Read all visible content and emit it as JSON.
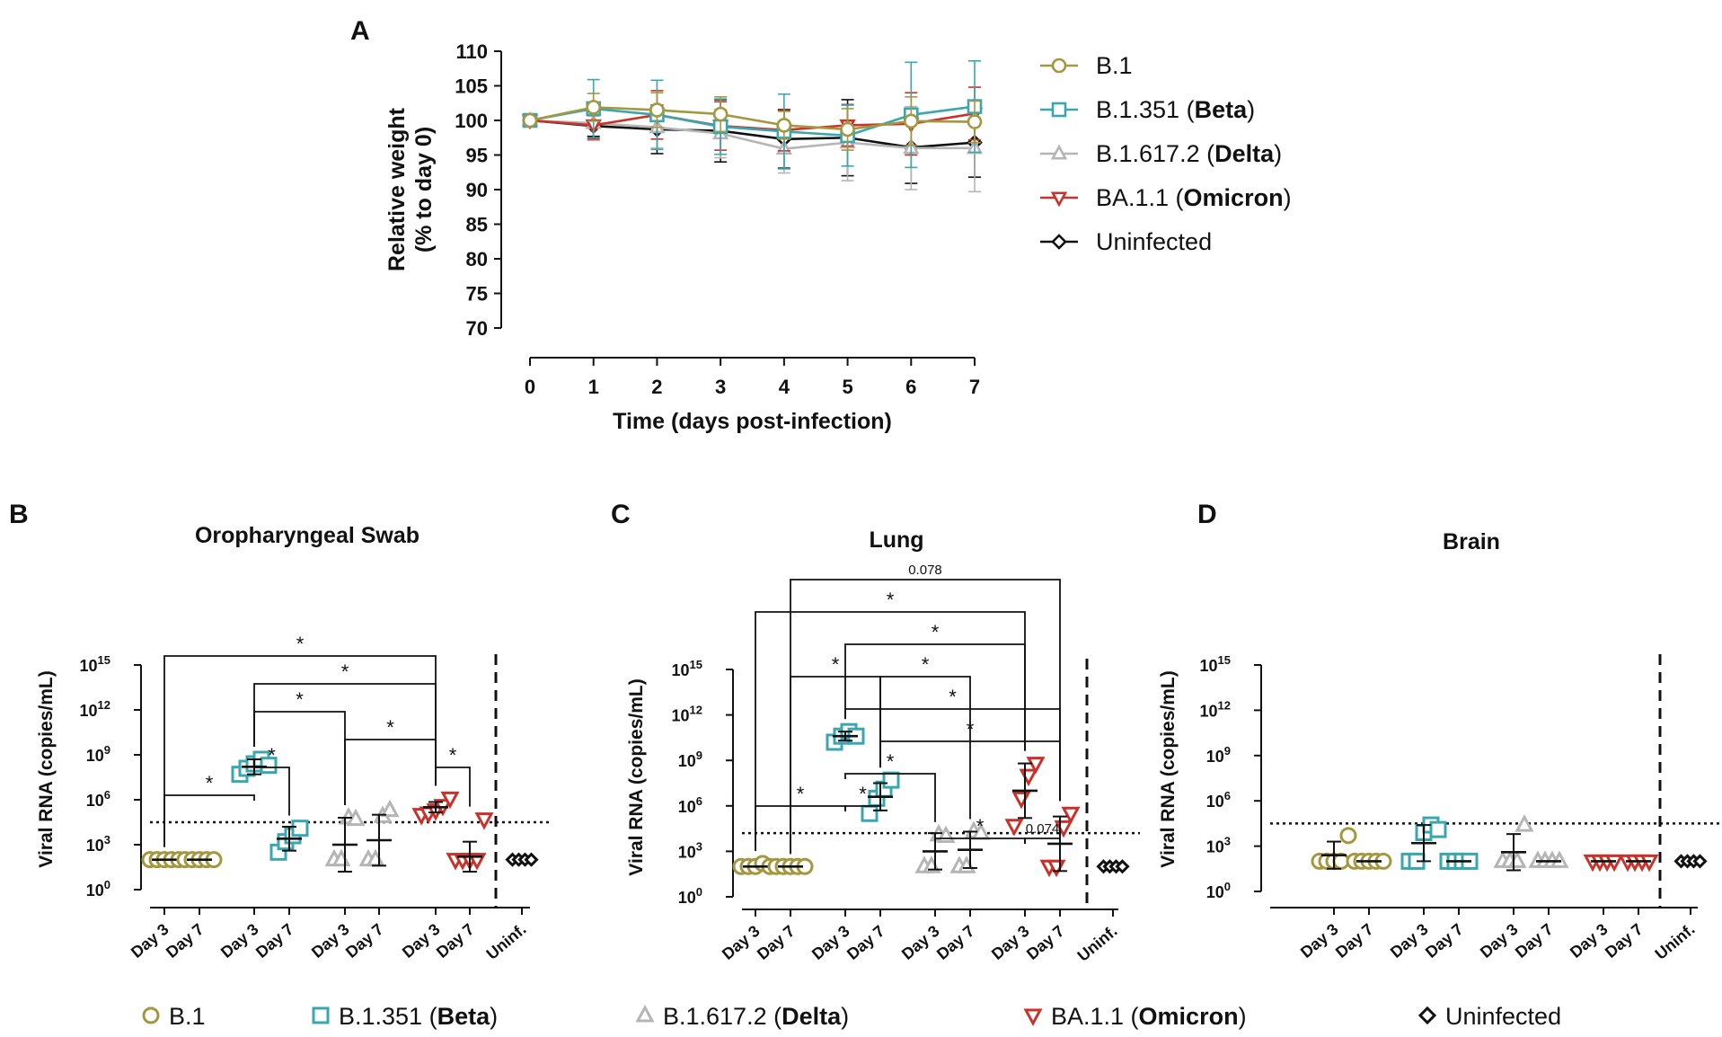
{
  "colors": {
    "b1": "#a39840",
    "beta": "#3aa6b0",
    "delta": "#b5b5b5",
    "omicron": "#c9322a",
    "uninf": "#111111"
  },
  "panel_letters": [
    "A",
    "B",
    "C",
    "D"
  ],
  "legend": [
    {
      "key": "b1",
      "prefix": "B.1",
      "bold": "",
      "suffix": "",
      "marker": "circle"
    },
    {
      "key": "beta",
      "prefix": "B.1.351 (",
      "bold": "Beta",
      "suffix": ")",
      "marker": "square"
    },
    {
      "key": "delta",
      "prefix": "B.1.617.2 (",
      "bold": "Delta",
      "suffix": ")",
      "marker": "triangle-up"
    },
    {
      "key": "omicron",
      "prefix": "BA.1.1 (",
      "bold": "Omicron",
      "suffix": ")",
      "marker": "triangle-down"
    },
    {
      "key": "uninf",
      "prefix": "Uninfected",
      "bold": "",
      "suffix": "",
      "marker": "diamond"
    }
  ],
  "chart_data": [
    {
      "id": "A",
      "type": "line",
      "title": "",
      "xlabel": "Time (days post-infection)",
      "ylabel": [
        "Relative weight",
        "(% to day 0)"
      ],
      "xlim": [
        0,
        7
      ],
      "ylim": [
        70,
        110
      ],
      "xticks": [
        "0",
        "1",
        "2",
        "3",
        "4",
        "5",
        "6",
        "7"
      ],
      "yticks": [
        "70",
        "75",
        "80",
        "85",
        "90",
        "95",
        "100",
        "105",
        "110"
      ],
      "x": [
        0,
        1,
        2,
        3,
        4,
        5,
        6,
        7
      ],
      "series": [
        {
          "key": "uninf",
          "name": "Uninfected",
          "values": [
            100,
            99.2,
            98.7,
            98.5,
            97.3,
            97.5,
            96.1,
            96.8
          ],
          "err": [
            0,
            1.5,
            3.5,
            4.5,
            4.2,
            5.5,
            5.2,
            5.0
          ]
        },
        {
          "key": "delta",
          "name": "B.1.617.2 (Delta)",
          "values": [
            100,
            99.6,
            99.0,
            98.1,
            95.9,
            96.8,
            96.0,
            96.0
          ],
          "err": [
            0,
            2.5,
            3.0,
            3.5,
            3.5,
            5.5,
            6.0,
            6.3
          ]
        },
        {
          "key": "omicron",
          "name": "BA.1.1 (Omicron)",
          "values": [
            100,
            99.3,
            100.8,
            99.2,
            98.6,
            99.3,
            99.5,
            101.0
          ],
          "err": [
            0,
            2.0,
            3.5,
            3.5,
            3.0,
            3.0,
            4.5,
            3.8
          ]
        },
        {
          "key": "beta",
          "name": "B.1.351 (Beta)",
          "values": [
            100,
            101.7,
            100.8,
            99.1,
            98.4,
            97.8,
            100.8,
            102.0
          ],
          "err": [
            0,
            4.2,
            5.0,
            4.0,
            5.4,
            4.4,
            7.6,
            6.6
          ]
        },
        {
          "key": "b1",
          "name": "B.1",
          "values": [
            100,
            101.9,
            101.5,
            100.9,
            99.3,
            98.7,
            99.9,
            99.8
          ],
          "err": [
            0,
            2.0,
            2.5,
            2.5,
            2.0,
            3.0,
            3.5,
            3.0
          ]
        }
      ]
    },
    {
      "id": "B",
      "type": "scatter",
      "title": "Oropharyngeal Swab",
      "ylabel": "Viral RNA (copies/mL)",
      "ylim_log10": [
        0,
        15
      ],
      "yticks": [
        {
          "base": "10",
          "exp": "0"
        },
        {
          "base": "10",
          "exp": "3"
        },
        {
          "base": "10",
          "exp": "6"
        },
        {
          "base": "10",
          "exp": "9"
        },
        {
          "base": "10",
          "exp": "12"
        },
        {
          "base": "10",
          "exp": "15"
        }
      ],
      "groups": [
        {
          "label": "Day 3",
          "key": "b1",
          "log_values": [
            2.0,
            2.0,
            2.0,
            2.0,
            2.0
          ],
          "mean": 2.0,
          "sd": 0
        },
        {
          "label": "Day 7",
          "key": "b1",
          "log_values": [
            2.0,
            2.0,
            2.0,
            2.0,
            2.0
          ],
          "mean": 2.0,
          "sd": 0
        },
        {
          "label": "Day 3",
          "key": "beta",
          "log_values": [
            7.7,
            8.1,
            8.4,
            8.7,
            8.3
          ],
          "mean": 8.2,
          "sd": 0.5
        },
        {
          "label": "Day 7",
          "key": "beta",
          "log_values": [
            2.5,
            3.2,
            3.6,
            4.1
          ],
          "mean": 3.4,
          "sd": 0.8
        },
        {
          "label": "Day 3",
          "key": "delta",
          "log_values": [
            2.0,
            2.0,
            4.8,
            4.7
          ],
          "mean": 3.0,
          "sd": 1.8
        },
        {
          "label": "Day 7",
          "key": "delta",
          "log_values": [
            2.0,
            2.0,
            4.9,
            5.3
          ],
          "mean": 3.3,
          "sd": 1.7
        },
        {
          "label": "Day 3",
          "key": "omicron",
          "log_values": [
            5.0,
            5.1,
            5.3,
            5.6,
            6.1
          ],
          "mean": 5.5,
          "sd": 0.35
        },
        {
          "label": "Day 7",
          "key": "omicron",
          "log_values": [
            2.0,
            2.0,
            2.0,
            2.0,
            4.7
          ],
          "mean": 2.2,
          "sd": 1.0
        },
        {
          "label": "Uninf.",
          "key": "uninf",
          "log_values": [
            2.0,
            2.0,
            2.0,
            2.0
          ],
          "mean": null,
          "sd": null
        }
      ],
      "lod_log10": 4.5,
      "brackets": [
        {
          "from": 0,
          "to": 2,
          "label": "*",
          "level": 5
        },
        {
          "from": 2,
          "to": 3,
          "label": "*",
          "level": 4
        },
        {
          "from": 2,
          "to": 4,
          "label": "*",
          "level": 2
        },
        {
          "from": 4,
          "to": 6,
          "label": "*",
          "level": 3
        },
        {
          "from": 6,
          "to": 7,
          "label": "*",
          "level": 4
        },
        {
          "from": 2,
          "to": 6,
          "label": "*",
          "level": 1
        },
        {
          "from": 0,
          "to": 6,
          "label": "*",
          "level": 0
        }
      ]
    },
    {
      "id": "C",
      "type": "scatter",
      "title": "Lung",
      "ylabel": "Viral RNA (copies/mL)",
      "ylim_log10": [
        0,
        15
      ],
      "yticks": [
        {
          "base": "10",
          "exp": "0"
        },
        {
          "base": "10",
          "exp": "3"
        },
        {
          "base": "10",
          "exp": "6"
        },
        {
          "base": "10",
          "exp": "9"
        },
        {
          "base": "10",
          "exp": "12"
        },
        {
          "base": "10",
          "exp": "15"
        }
      ],
      "groups": [
        {
          "label": "Day 3",
          "key": "b1",
          "log_values": [
            2.0,
            2.0,
            2.0,
            2.2,
            2.0
          ],
          "mean": 2.0,
          "sd": 0
        },
        {
          "label": "Day 7",
          "key": "b1",
          "log_values": [
            2.0,
            2.0,
            2.0,
            2.0,
            2.0
          ],
          "mean": 2.0,
          "sd": 0
        },
        {
          "label": "Day 3",
          "key": "beta",
          "log_values": [
            10.2,
            10.6,
            10.9,
            10.6
          ],
          "mean": 10.6,
          "sd": 0.3
        },
        {
          "label": "Day 7",
          "key": "beta",
          "log_values": [
            5.5,
            6.5,
            7.1,
            7.7
          ],
          "mean": 6.6,
          "sd": 0.9
        },
        {
          "label": "Day 3",
          "key": "delta",
          "log_values": [
            2.0,
            2.0,
            4.1,
            4.0
          ],
          "mean": 3.0,
          "sd": 1.2
        },
        {
          "label": "Day 7",
          "key": "delta",
          "log_values": [
            2.0,
            2.0,
            4.3,
            4.2
          ],
          "mean": 3.1,
          "sd": 1.2
        },
        {
          "label": "Day 3",
          "key": "omicron",
          "log_values": [
            4.7,
            6.5,
            8.0,
            8.8
          ],
          "mean": 7.0,
          "sd": 1.8
        },
        {
          "label": "Day 7",
          "key": "omicron",
          "log_values": [
            2.0,
            2.0,
            4.6,
            5.5
          ],
          "mean": 3.5,
          "sd": 1.8
        },
        {
          "label": "Uninf.",
          "key": "uninf",
          "log_values": [
            2.0,
            2.0,
            2.0,
            2.0
          ],
          "mean": null,
          "sd": null
        }
      ],
      "lod_log10": 4.2,
      "brackets": [
        {
          "from": 0,
          "to": 2,
          "label": "*",
          "level": 3
        },
        {
          "from": 2,
          "to": 3,
          "label": "*",
          "level": 3
        },
        {
          "from": 2,
          "to": 4,
          "label": "*",
          "level": 2
        },
        {
          "from": 4,
          "to": 6,
          "label": "*",
          "level": 4
        },
        {
          "from": 6,
          "to": 7,
          "label": "0.074",
          "level": 4
        },
        {
          "from": 3,
          "to": 7,
          "label": "*",
          "level": 1
        },
        {
          "from": 2,
          "to": 7,
          "label": "*",
          "level": 0
        },
        {
          "from": 3,
          "to": 5,
          "label": "*",
          "level": -1
        },
        {
          "from": 1,
          "to": 3,
          "label": "*",
          "level": -1
        },
        {
          "from": 2,
          "to": 6,
          "label": "*",
          "level": -2
        },
        {
          "from": 0,
          "to": 6,
          "label": "*",
          "level": -3
        },
        {
          "from": 1,
          "to": 7,
          "label": "0.078",
          "level": -4
        }
      ]
    },
    {
      "id": "D",
      "type": "scatter",
      "title": "Brain",
      "ylabel": "Viral RNA (copies/mL)",
      "ylim_log10": [
        0,
        15
      ],
      "yticks": [
        {
          "base": "10",
          "exp": "0"
        },
        {
          "base": "10",
          "exp": "3"
        },
        {
          "base": "10",
          "exp": "6"
        },
        {
          "base": "10",
          "exp": "9"
        },
        {
          "base": "10",
          "exp": "12"
        },
        {
          "base": "10",
          "exp": "15"
        }
      ],
      "groups": [
        {
          "label": "Day 3",
          "key": "b1",
          "log_values": [
            2.0,
            2.0,
            2.0,
            2.0,
            3.7
          ],
          "mean": 2.4,
          "sd": 0.9
        },
        {
          "label": "Day 7",
          "key": "b1",
          "log_values": [
            2.0,
            2.0,
            2.0,
            2.0,
            2.0
          ],
          "mean": 2.0,
          "sd": 0
        },
        {
          "label": "Day 3",
          "key": "beta",
          "log_values": [
            2.0,
            2.0,
            3.9,
            4.4,
            4.1
          ],
          "mean": 3.2,
          "sd": 1.2
        },
        {
          "label": "Day 7",
          "key": "beta",
          "log_values": [
            2.0,
            2.0,
            2.0,
            2.0
          ],
          "mean": 2.0,
          "sd": 0
        },
        {
          "label": "Day 3",
          "key": "delta",
          "log_values": [
            2.0,
            2.0,
            2.0,
            4.4
          ],
          "mean": 2.6,
          "sd": 1.2
        },
        {
          "label": "Day 7",
          "key": "delta",
          "log_values": [
            2.0,
            2.0,
            2.0,
            2.0
          ],
          "mean": 2.0,
          "sd": 0
        },
        {
          "label": "Day 3",
          "key": "omicron",
          "log_values": [
            2.0,
            2.0,
            2.0,
            2.0
          ],
          "mean": 2.0,
          "sd": 0
        },
        {
          "label": "Day 7",
          "key": "omicron",
          "log_values": [
            2.0,
            2.0,
            2.0,
            2.0
          ],
          "mean": 2.0,
          "sd": 0
        },
        {
          "label": "Uninf.",
          "key": "uninf",
          "log_values": [
            2.0,
            2.0,
            2.0,
            2.0
          ],
          "mean": null,
          "sd": null
        }
      ],
      "lod_log10": 4.5,
      "brackets": []
    }
  ]
}
